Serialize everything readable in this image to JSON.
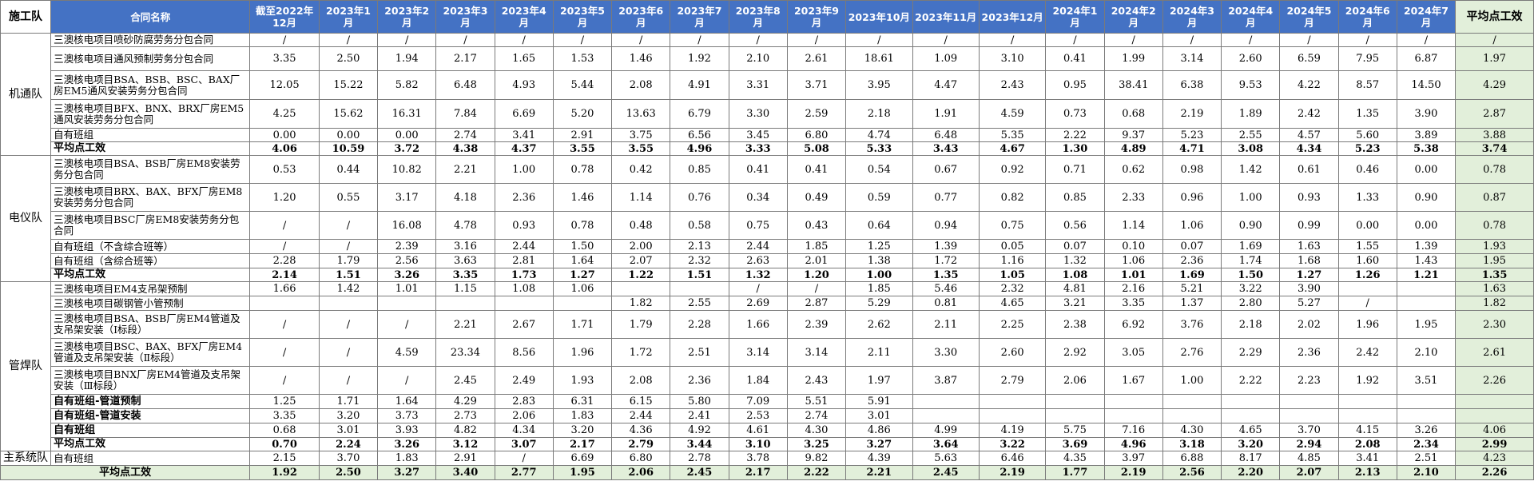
{
  "headers": {
    "team": "施工队",
    "contract": "合同名称",
    "months": [
      "截至2022年12月",
      "2023年1月",
      "2023年2月",
      "2023年3月",
      "2023年4月",
      "2023年5月",
      "2023年6月",
      "2023年7月",
      "2023年8月",
      "2023年9月",
      "2023年10月",
      "2023年11月",
      "2023年12月",
      "2024年1月",
      "2024年2月",
      "2024年3月",
      "2024年4月",
      "2024年5月",
      "2024年6月",
      "2024年7月"
    ],
    "avg": "平均点工效"
  },
  "groups": [
    {
      "team": "机通队",
      "rows": [
        {
          "name": "三澳核电项目喷砂防腐劳务分包合同",
          "values": [
            "/",
            "/",
            "/",
            "/",
            "/",
            "/",
            "/",
            "/",
            "/",
            "/",
            "/",
            "/",
            "/",
            "/",
            "/",
            "/",
            "/",
            "/",
            "/",
            "/"
          ],
          "avg": "/",
          "h": 17
        },
        {
          "name": "三澳核电项目通风预制劳务分包合同",
          "values": [
            "3.35",
            "2.50",
            "1.94",
            "2.17",
            "1.65",
            "1.53",
            "1.46",
            "1.92",
            "2.10",
            "2.61",
            "18.61",
            "1.09",
            "3.10",
            "0.41",
            "1.99",
            "3.14",
            "2.60",
            "6.59",
            "7.95",
            "6.87"
          ],
          "avg": "1.97",
          "h": 30
        },
        {
          "name": "三澳核电项目BSA、BSB、BSC、BAX厂房EM5通风安装劳务分包合同",
          "values": [
            "12.05",
            "15.22",
            "5.82",
            "6.48",
            "4.93",
            "5.44",
            "2.08",
            "4.91",
            "3.31",
            "3.71",
            "3.95",
            "4.47",
            "2.43",
            "0.95",
            "38.41",
            "6.38",
            "9.53",
            "4.22",
            "8.57",
            "14.50"
          ],
          "avg": "4.29",
          "h": 36
        },
        {
          "name": "三澳核电项目BFX、BNX、BRX厂房EM5通风安装劳务分包合同",
          "values": [
            "4.25",
            "15.62",
            "16.31",
            "7.84",
            "6.69",
            "5.20",
            "13.63",
            "6.79",
            "3.30",
            "2.59",
            "2.18",
            "1.91",
            "4.59",
            "0.73",
            "0.68",
            "2.19",
            "1.89",
            "2.42",
            "1.35",
            "3.90"
          ],
          "avg": "2.87",
          "h": 36
        },
        {
          "name": "自有班组",
          "values": [
            "0.00",
            "0.00",
            "0.00",
            "2.74",
            "3.41",
            "2.91",
            "3.75",
            "6.56",
            "3.45",
            "6.80",
            "4.74",
            "6.48",
            "5.35",
            "2.22",
            "9.37",
            "5.23",
            "2.55",
            "4.57",
            "5.60",
            "3.89"
          ],
          "avg": "3.88",
          "h": 17
        }
      ],
      "summary": {
        "name": "平均点工效",
        "values": [
          "4.06",
          "10.59",
          "3.72",
          "4.38",
          "4.37",
          "3.55",
          "3.55",
          "4.96",
          "3.33",
          "5.08",
          "5.33",
          "3.43",
          "4.67",
          "1.30",
          "4.89",
          "4.71",
          "3.08",
          "4.34",
          "5.23",
          "5.38"
        ],
        "avg": "3.74"
      }
    },
    {
      "team": "电仪队",
      "rows": [
        {
          "name": "三澳核电项目BSA、BSB厂房EM8安装劳务分包合同",
          "values": [
            "0.53",
            "0.44",
            "10.82",
            "2.21",
            "1.00",
            "0.78",
            "0.42",
            "0.85",
            "0.41",
            "0.41",
            "0.54",
            "0.67",
            "0.92",
            "0.71",
            "0.62",
            "0.98",
            "1.42",
            "0.61",
            "0.46",
            "0.00"
          ],
          "avg": "0.78",
          "h": 35
        },
        {
          "name": "三澳核电项目BRX、BAX、BFX厂房EM8安装劳务分包合同",
          "values": [
            "1.20",
            "0.55",
            "3.17",
            "4.18",
            "2.36",
            "1.46",
            "1.14",
            "0.76",
            "0.34",
            "0.49",
            "0.59",
            "0.77",
            "0.82",
            "0.85",
            "2.33",
            "0.96",
            "1.00",
            "0.93",
            "1.33",
            "0.90"
          ],
          "avg": "0.87",
          "h": 35
        },
        {
          "name": "三澳核电项目BSC厂房EM8安装劳务分包合同",
          "values": [
            "/",
            "/",
            "16.08",
            "4.78",
            "0.93",
            "0.78",
            "0.48",
            "0.58",
            "0.75",
            "0.43",
            "0.64",
            "0.94",
            "0.75",
            "0.56",
            "1.14",
            "1.06",
            "0.90",
            "0.99",
            "0.00",
            "0.00"
          ],
          "avg": "0.78",
          "h": 35
        },
        {
          "name": "自有班组（不含综合班等）",
          "values": [
            "/",
            "/",
            "2.39",
            "3.16",
            "2.44",
            "1.50",
            "2.00",
            "2.13",
            "2.44",
            "1.85",
            "1.25",
            "1.39",
            "0.05",
            "0.07",
            "0.10",
            "0.07",
            "1.69",
            "1.63",
            "1.55",
            "1.39"
          ],
          "avg": "1.93",
          "h": 18
        },
        {
          "name": "自有班组（含综合班等）",
          "values": [
            "2.28",
            "1.79",
            "2.56",
            "3.63",
            "2.81",
            "1.64",
            "2.07",
            "2.32",
            "2.63",
            "2.01",
            "1.38",
            "1.72",
            "1.16",
            "1.32",
            "1.06",
            "2.36",
            "1.74",
            "1.68",
            "1.60",
            "1.43"
          ],
          "avg": "1.95",
          "h": 18
        }
      ],
      "summary": {
        "name": "平均点工效",
        "values": [
          "2.14",
          "1.51",
          "3.26",
          "3.35",
          "1.73",
          "1.27",
          "1.22",
          "1.51",
          "1.32",
          "1.20",
          "1.00",
          "1.35",
          "1.05",
          "1.08",
          "1.01",
          "1.69",
          "1.50",
          "1.27",
          "1.26",
          "1.21"
        ],
        "avg": "1.35"
      }
    },
    {
      "team": "管焊队",
      "rows": [
        {
          "name": "三澳核电项目EM4支吊架预制",
          "values": [
            "1.66",
            "1.42",
            "1.01",
            "1.15",
            "1.08",
            "1.06",
            "",
            "",
            "/",
            "/",
            "1.85",
            "5.46",
            "2.32",
            "4.81",
            "2.16",
            "5.21",
            "3.22",
            "3.90",
            "",
            ""
          ],
          "avg": "1.63",
          "h": 18
        },
        {
          "name": "三澳核电项目碳钢管小管预制",
          "values": [
            "",
            "",
            "",
            "",
            "",
            "",
            "1.82",
            "2.55",
            "2.69",
            "2.87",
            "5.29",
            "0.81",
            "4.65",
            "3.21",
            "3.35",
            "1.37",
            "2.80",
            "5.27",
            "/",
            ""
          ],
          "avg": "1.82",
          "h": 18
        },
        {
          "name": "三澳核电项目BSA、BSB厂房EM4管道及支吊架安装（Ⅰ标段）",
          "values": [
            "/",
            "/",
            "/",
            "2.21",
            "2.67",
            "1.71",
            "1.79",
            "2.28",
            "1.66",
            "2.39",
            "2.62",
            "2.11",
            "2.25",
            "2.38",
            "6.92",
            "3.76",
            "2.18",
            "2.02",
            "1.96",
            "1.95"
          ],
          "avg": "2.30",
          "h": 35
        },
        {
          "name": "三澳核电项目BSC、BAX、BFX厂房EM4管道及支吊架安装（Ⅱ标段）",
          "values": [
            "/",
            "/",
            "4.59",
            "23.34",
            "8.56",
            "1.96",
            "1.72",
            "2.51",
            "3.14",
            "3.14",
            "2.11",
            "3.30",
            "2.60",
            "2.92",
            "3.05",
            "2.76",
            "2.29",
            "2.36",
            "2.42",
            "2.10"
          ],
          "avg": "2.61",
          "h": 35
        },
        {
          "name": "三澳核电项目BNX厂房EM4管道及支吊架安装（Ⅲ标段）",
          "values": [
            "/",
            "/",
            "/",
            "2.45",
            "2.49",
            "1.93",
            "2.08",
            "2.36",
            "1.84",
            "2.43",
            "1.97",
            "3.87",
            "2.79",
            "2.06",
            "1.67",
            "1.00",
            "2.22",
            "2.23",
            "1.92",
            "3.51"
          ],
          "avg": "2.26",
          "h": 35
        },
        {
          "name": "自有班组-管道预制",
          "values": [
            "1.25",
            "1.71",
            "1.64",
            "4.29",
            "2.83",
            "6.31",
            "6.15",
            "5.80",
            "7.09",
            "5.51",
            "5.91",
            "",
            "",
            "",
            "",
            "",
            "",
            "",
            "",
            ""
          ],
          "avg": "",
          "h": 18,
          "bold": true
        },
        {
          "name": "自有班组-管道安装",
          "values": [
            "3.35",
            "3.20",
            "3.73",
            "2.73",
            "2.06",
            "1.83",
            "2.44",
            "2.41",
            "2.53",
            "2.74",
            "3.01",
            "",
            "",
            "",
            "",
            "",
            "",
            "",
            "",
            ""
          ],
          "avg": "",
          "h": 18,
          "bold": true
        },
        {
          "name": "自有班组",
          "values": [
            "0.68",
            "3.01",
            "3.93",
            "4.82",
            "4.34",
            "3.20",
            "4.36",
            "4.92",
            "4.61",
            "4.30",
            "4.86",
            "4.99",
            "4.19",
            "5.75",
            "7.16",
            "4.30",
            "4.65",
            "3.70",
            "4.15",
            "3.26"
          ],
          "avg": "4.06",
          "h": 18,
          "bold": true
        }
      ],
      "summary": {
        "name": "平均点工效",
        "values": [
          "0.70",
          "2.24",
          "3.26",
          "3.12",
          "3.07",
          "2.17",
          "2.79",
          "3.44",
          "3.10",
          "3.25",
          "3.27",
          "3.64",
          "3.22",
          "3.69",
          "4.96",
          "3.18",
          "3.20",
          "2.94",
          "2.08",
          "2.34"
        ],
        "avg": "2.99"
      }
    },
    {
      "team": "主系统队",
      "rows": [
        {
          "name": "自有班组",
          "values": [
            "2.15",
            "3.70",
            "1.83",
            "2.91",
            "/",
            "6.69",
            "6.80",
            "2.78",
            "3.78",
            "9.82",
            "4.39",
            "5.63",
            "6.46",
            "4.35",
            "3.97",
            "6.88",
            "8.17",
            "4.85",
            "3.41",
            "2.51"
          ],
          "avg": "4.23",
          "h": 18
        }
      ]
    }
  ],
  "grand_total": {
    "label": "平均点工效",
    "values": [
      "1.92",
      "2.50",
      "3.27",
      "3.40",
      "2.77",
      "1.95",
      "2.06",
      "2.45",
      "2.17",
      "2.22",
      "2.21",
      "2.45",
      "2.19",
      "1.77",
      "2.19",
      "2.56",
      "2.20",
      "2.07",
      "2.13",
      "2.10"
    ],
    "avg": "2.26"
  }
}
